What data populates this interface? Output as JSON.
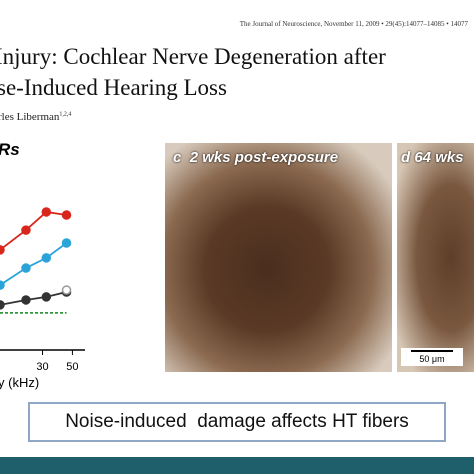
{
  "header": {
    "journal": "The Journal of Neuroscience, November 11, 2009 • 29(45):14077–14085 • 14077",
    "title_lines": [
      "Injury: Cochlear Nerve Degeneration after",
      "se-Induced Hearing Loss"
    ],
    "author": "rles Liberman",
    "author_sup": "1,2,4"
  },
  "chart_data": {
    "type": "line",
    "title": "Rs",
    "xlabel": "y (kHz)",
    "xlog": true,
    "x": [
      14.5,
      22.6,
      32,
      45.2
    ],
    "xlim": [
      14.5,
      62
    ],
    "xticks": [
      30,
      50
    ],
    "ylim": [
      0,
      80
    ],
    "series": [
      {
        "color": "#d9261c",
        "values": [
          36.4,
          43.6,
          50.2,
          49.1
        ]
      },
      {
        "color": "#2aa3d8",
        "values": [
          23.6,
          29.8,
          33.5,
          38.9
        ]
      },
      {
        "color": "#333333",
        "values": [
          16.4,
          18.2,
          19.3,
          21.1
        ]
      },
      {
        "color": "#999999",
        "values": [
          null,
          null,
          null,
          21.8
        ],
        "open": true
      },
      {
        "color": "#2e9a3a",
        "values": [
          13.5,
          13.5,
          13.5,
          13.5
        ],
        "dashed": true
      }
    ]
  },
  "panels": [
    {
      "letter": "c",
      "label": "2 wks post-exposure"
    },
    {
      "letter": "d",
      "label": "64 wks",
      "scale": "50 μm"
    }
  ],
  "caption": "Noise-induced  damage affects HT fibers"
}
